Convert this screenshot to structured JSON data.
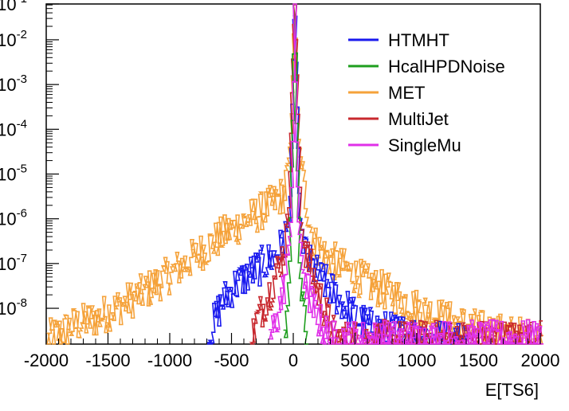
{
  "chart_data": {
    "type": "line",
    "title": "",
    "xlabel": "E[TS6]",
    "ylabel": "",
    "xlim": [
      -2000,
      2000
    ],
    "ylim_log10": [
      -8.8,
      -1.2
    ],
    "y_scale": "log",
    "grid": false,
    "legend_position": "top-right",
    "x_ticks": [
      -2000,
      -1500,
      -1000,
      -500,
      0,
      500,
      1000,
      1500,
      2000
    ],
    "x_tick_labels": [
      "-2000",
      "-1500",
      "-1000",
      "-500",
      "0",
      "500",
      "1000",
      "1500",
      "2000"
    ],
    "y_ticks": [
      {
        "base": "10",
        "exp": "-1",
        "value": 0.1
      },
      {
        "base": "10",
        "exp": "-2",
        "value": 0.01
      },
      {
        "base": "10",
        "exp": "-3",
        "value": 0.001
      },
      {
        "base": "10",
        "exp": "-4",
        "value": 0.0001
      },
      {
        "base": "10",
        "exp": "-5",
        "value": 1e-05
      },
      {
        "base": "10",
        "exp": "-6",
        "value": 1e-06
      },
      {
        "base": "10",
        "exp": "-7",
        "value": 1e-07
      },
      {
        "base": "10",
        "exp": "-8",
        "value": 1e-08
      }
    ],
    "series": [
      {
        "name": "MET",
        "color": "#f5a23a",
        "points": [
          [
            -2000,
            2e-09
          ],
          [
            -1800,
            4e-09
          ],
          [
            -1600,
            6e-09
          ],
          [
            -1400,
            1.2e-08
          ],
          [
            -1200,
            2.5e-08
          ],
          [
            -1000,
            6e-08
          ],
          [
            -800,
            1.5e-07
          ],
          [
            -600,
            4e-07
          ],
          [
            -400,
            9e-07
          ],
          [
            -250,
            1.6e-06
          ],
          [
            -150,
            2.5e-06
          ],
          [
            -80,
            4e-06
          ],
          [
            -30,
            6e-05
          ],
          [
            0,
            0.08
          ],
          [
            30,
            6e-05
          ],
          [
            80,
            4e-06
          ],
          [
            150,
            3e-07
          ],
          [
            250,
            1.5e-07
          ],
          [
            400,
            8e-08
          ],
          [
            600,
            3.5e-08
          ],
          [
            800,
            2e-08
          ],
          [
            1000,
            1e-08
          ],
          [
            1200,
            6e-09
          ],
          [
            1400,
            4e-09
          ],
          [
            1600,
            3e-09
          ],
          [
            1800,
            2.5e-09
          ],
          [
            2000,
            2e-09
          ]
        ]
      },
      {
        "name": "HTMHT",
        "color": "#1a1aee",
        "points": [
          [
            -700,
            2e-09
          ],
          [
            -650,
            5e-09
          ],
          [
            -600,
            1.2e-08
          ],
          [
            -500,
            3e-08
          ],
          [
            -400,
            5e-08
          ],
          [
            -300,
            8e-08
          ],
          [
            -200,
            1.2e-07
          ],
          [
            -100,
            2.5e-07
          ],
          [
            -40,
            1e-06
          ],
          [
            0,
            0.1
          ],
          [
            40,
            1e-06
          ],
          [
            100,
            1.2e-07
          ],
          [
            200,
            5e-08
          ],
          [
            300,
            2.5e-08
          ],
          [
            400,
            1.2e-08
          ],
          [
            500,
            6e-09
          ],
          [
            600,
            4e-09
          ],
          [
            800,
            3e-09
          ],
          [
            1000,
            2.5e-09
          ],
          [
            1200,
            2e-09
          ],
          [
            1400,
            2e-09
          ]
        ]
      },
      {
        "name": "MultiJet",
        "color": "#c8282e",
        "points": [
          [
            -350,
            2e-09
          ],
          [
            -300,
            6e-09
          ],
          [
            -250,
            1.2e-08
          ],
          [
            -200,
            2.5e-08
          ],
          [
            -150,
            6e-08
          ],
          [
            -100,
            1.5e-07
          ],
          [
            -50,
            8e-07
          ],
          [
            0,
            0.1
          ],
          [
            50,
            8e-07
          ],
          [
            100,
            1.5e-07
          ],
          [
            150,
            5e-08
          ],
          [
            200,
            2e-08
          ],
          [
            250,
            8e-09
          ],
          [
            300,
            3e-09
          ],
          [
            350,
            2e-09
          ],
          [
            2000,
            2e-09
          ]
        ]
      },
      {
        "name": "HcalHPDNoise",
        "color": "#1e9e1e",
        "points": [
          [
            -80,
            2e-09
          ],
          [
            -60,
            8e-09
          ],
          [
            -40,
            1e-07
          ],
          [
            -15,
            0.0002
          ],
          [
            0,
            0.25
          ],
          [
            15,
            0.0002
          ],
          [
            40,
            1e-07
          ],
          [
            60,
            1e-08
          ],
          [
            80,
            5e-09
          ],
          [
            100,
            2e-09
          ]
        ]
      },
      {
        "name": "SingleMu",
        "color": "#e030e8",
        "points": [
          [
            -200,
            2e-09
          ],
          [
            -150,
            5e-09
          ],
          [
            -100,
            2e-08
          ],
          [
            -60,
            1e-07
          ],
          [
            -30,
            1e-06
          ],
          [
            -10,
            0.0003
          ],
          [
            0,
            0.2
          ],
          [
            10,
            0.0003
          ],
          [
            30,
            1e-06
          ],
          [
            60,
            1e-07
          ],
          [
            100,
            3e-08
          ],
          [
            150,
            1e-08
          ],
          [
            200,
            5e-09
          ],
          [
            250,
            3e-09
          ],
          [
            300,
            2e-09
          ],
          [
            2000,
            2e-09
          ]
        ]
      }
    ],
    "legend": [
      {
        "name": "HTMHT",
        "color": "#1a1aee"
      },
      {
        "name": "HcalHPDNoise",
        "color": "#1e9e1e"
      },
      {
        "name": "MET",
        "color": "#f5a23a"
      },
      {
        "name": "MultiJet",
        "color": "#c8282e"
      },
      {
        "name": "SingleMu",
        "color": "#e030e8"
      }
    ]
  }
}
